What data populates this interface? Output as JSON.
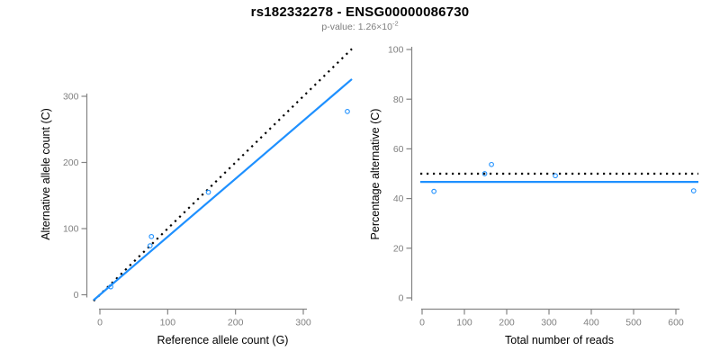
{
  "title": "rs182332278 - ENSG00000086730",
  "subtitle": {
    "label": "p-value:",
    "coefficient": "1.26×10",
    "exponent": "-2"
  },
  "colors": {
    "accent_blue": "#1E90FF",
    "line_black": "#000000",
    "axis_gray": "#848484",
    "tick_label_gray": "#808080",
    "subtitle_gray": "#7d7d7d",
    "title_black": "#000000",
    "background": "#ffffff"
  },
  "chart_data": [
    {
      "type": "scatter",
      "xlabel": "Reference allele count (G)",
      "ylabel": "Alternative allele count (C)",
      "xlim": [
        0,
        380
      ],
      "ylim": [
        0,
        375
      ],
      "xticks": [
        0,
        100,
        200,
        300
      ],
      "yticks": [
        0,
        100,
        200,
        300
      ],
      "marker": "open-circle",
      "grid": false,
      "legend": "none",
      "points": [
        {
          "x": 16,
          "y": 12
        },
        {
          "x": 74,
          "y": 74
        },
        {
          "x": 76,
          "y": 88
        },
        {
          "x": 160,
          "y": 155
        },
        {
          "x": 365,
          "y": 277
        }
      ],
      "lines": [
        {
          "name": "identity-line",
          "style": "dotted",
          "color": "#000000",
          "slope": 1,
          "intercept": 0
        },
        {
          "name": "fit-line",
          "style": "solid",
          "color": "#1E90FF",
          "slope": 0.877,
          "intercept": 0
        }
      ]
    },
    {
      "type": "scatter",
      "xlabel": "Total number of reads",
      "ylabel": "Percentage alternative (C)",
      "xlim": [
        0,
        668
      ],
      "ylim": [
        0,
        100
      ],
      "xticks": [
        0,
        100,
        200,
        300,
        400,
        500,
        600
      ],
      "yticks": [
        0,
        20,
        40,
        60,
        80,
        100
      ],
      "marker": "open-circle",
      "grid": false,
      "legend": "none",
      "points": [
        {
          "x": 28,
          "y": 42.9
        },
        {
          "x": 148,
          "y": 50
        },
        {
          "x": 164,
          "y": 53.7
        },
        {
          "x": 315,
          "y": 49.2
        },
        {
          "x": 642,
          "y": 43.1
        }
      ],
      "lines": [
        {
          "name": "expected-line",
          "style": "dotted",
          "color": "#000000",
          "y": 50
        },
        {
          "name": "fit-line",
          "style": "solid",
          "color": "#1E90FF",
          "y": 46.7
        }
      ]
    }
  ]
}
